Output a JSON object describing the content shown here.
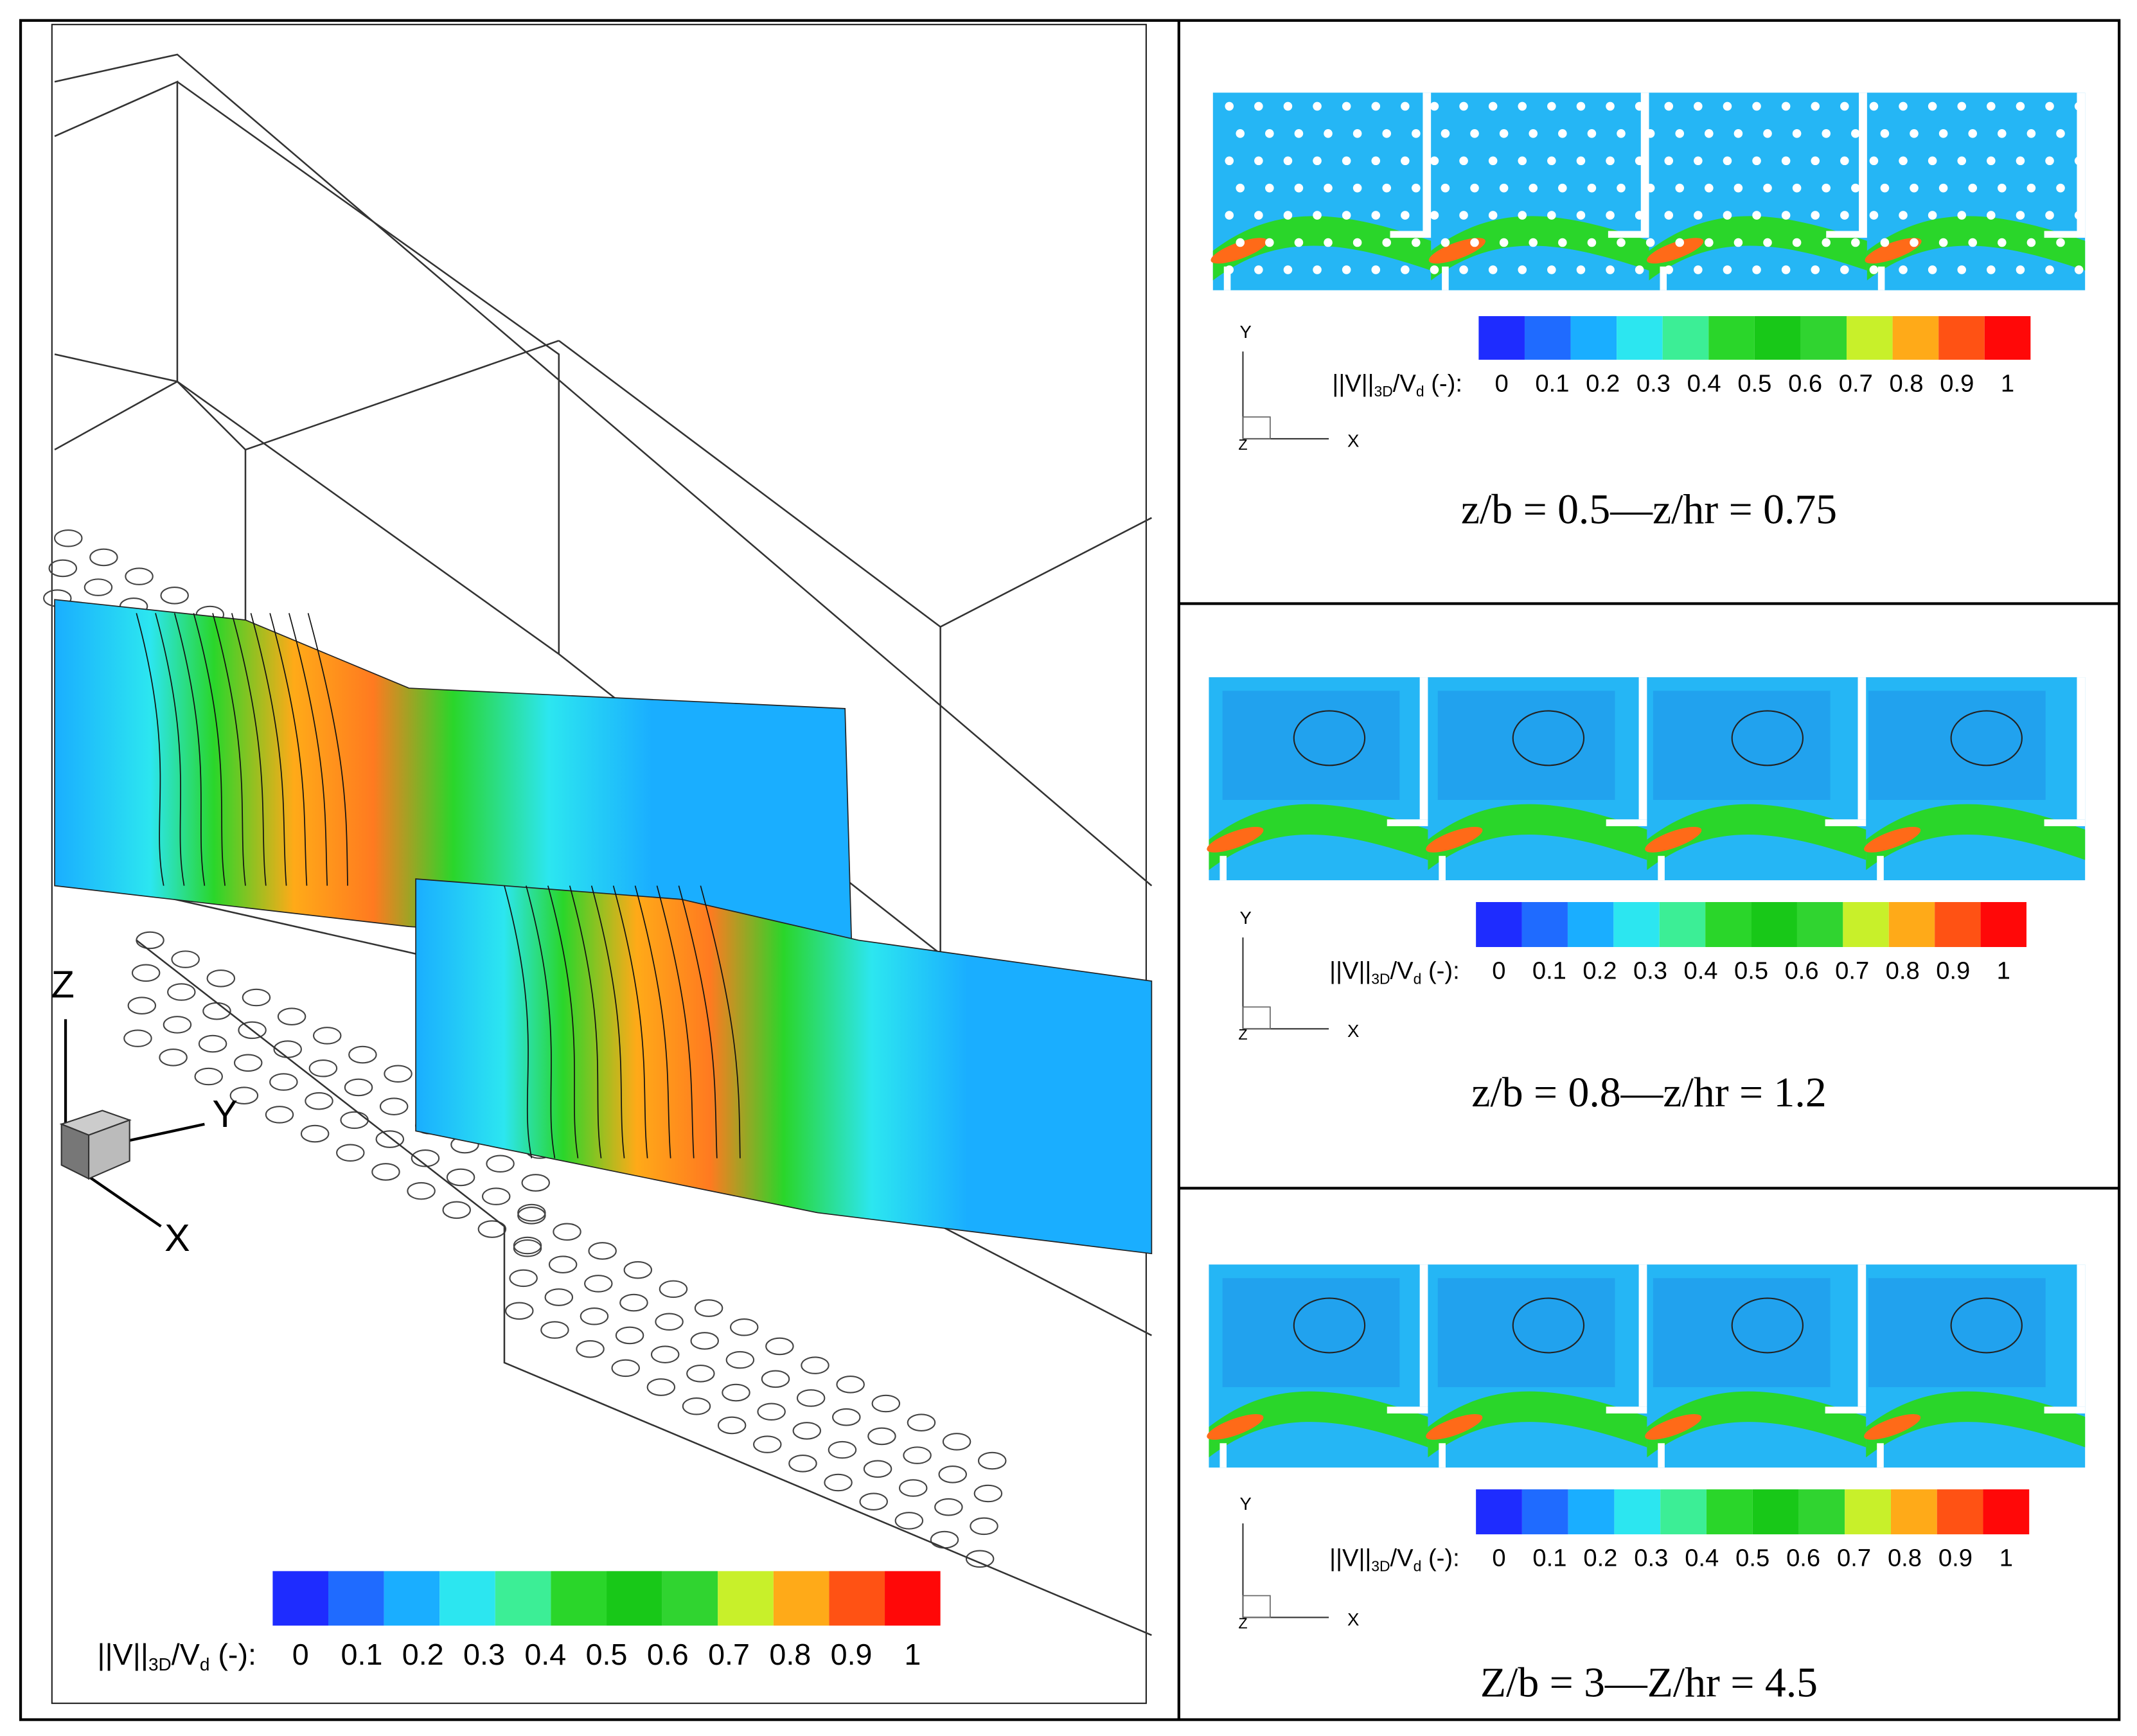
{
  "panels": [
    {
      "colorbar": {
        "label_parts": [
          "||V||",
          "3D",
          "/V",
          "d",
          " (-):"
        ],
        "ticks": [
          "0",
          "0.1",
          "0.2",
          "0.3",
          "0.4",
          "0.5",
          "0.6",
          "0.7",
          "0.8",
          "0.9",
          "1"
        ],
        "colors": [
          "#1e2cff",
          "#1f6bff",
          "#1aaeff",
          "#2ce6f0",
          "#3cee96",
          "#2ad62a",
          "#18c818",
          "#30d430",
          "#c8f02a",
          "#ffaa18",
          "#ff5214",
          "#ff0808"
        ]
      },
      "axes": [
        "Z",
        "Y",
        "X"
      ]
    },
    {
      "caption": "z/b = 0.5—z/hr = 0.75",
      "colorbar": {
        "label_parts": [
          "||V||",
          "3D",
          "/V",
          "d",
          " (-):"
        ],
        "ticks": [
          "0",
          "0.1",
          "0.2",
          "0.3",
          "0.4",
          "0.5",
          "0.6",
          "0.7",
          "0.8",
          "0.9",
          "1"
        ],
        "colors": [
          "#1e2cff",
          "#1f6bff",
          "#1aaeff",
          "#2ce6f0",
          "#3cee96",
          "#2ad62a",
          "#18c818",
          "#30d430",
          "#c8f02a",
          "#ffaa18",
          "#ff5214",
          "#ff0808"
        ]
      },
      "axes": [
        "Y",
        "X",
        "Z"
      ]
    },
    {
      "caption": "z/b = 0.8—z/hr = 1.2",
      "colorbar": {
        "label_parts": [
          "||V||",
          "3D",
          "/V",
          "d",
          " (-):"
        ],
        "ticks": [
          "0",
          "0.1",
          "0.2",
          "0.3",
          "0.4",
          "0.5",
          "0.6",
          "0.7",
          "0.8",
          "0.9",
          "1"
        ],
        "colors": [
          "#1e2cff",
          "#1f6bff",
          "#1aaeff",
          "#2ce6f0",
          "#3cee96",
          "#2ad62a",
          "#18c818",
          "#30d430",
          "#c8f02a",
          "#ffaa18",
          "#ff5214",
          "#ff0808"
        ]
      },
      "axes": [
        "Y",
        "X",
        "Z"
      ]
    },
    {
      "caption": "Z/b = 3—Z/hr = 4.5",
      "colorbar": {
        "label_parts": [
          "||V||",
          "3D",
          "/V",
          "d",
          " (-):"
        ],
        "ticks": [
          "0",
          "0.1",
          "0.2",
          "0.3",
          "0.4",
          "0.5",
          "0.6",
          "0.7",
          "0.8",
          "0.9",
          "1"
        ],
        "colors": [
          "#1e2cff",
          "#1f6bff",
          "#1aaeff",
          "#2ce6f0",
          "#3cee96",
          "#2ad62a",
          "#18c818",
          "#30d430",
          "#c8f02a",
          "#ffaa18",
          "#ff5214",
          "#ff0808"
        ]
      },
      "axes": [
        "Y",
        "X",
        "Z"
      ]
    }
  ]
}
